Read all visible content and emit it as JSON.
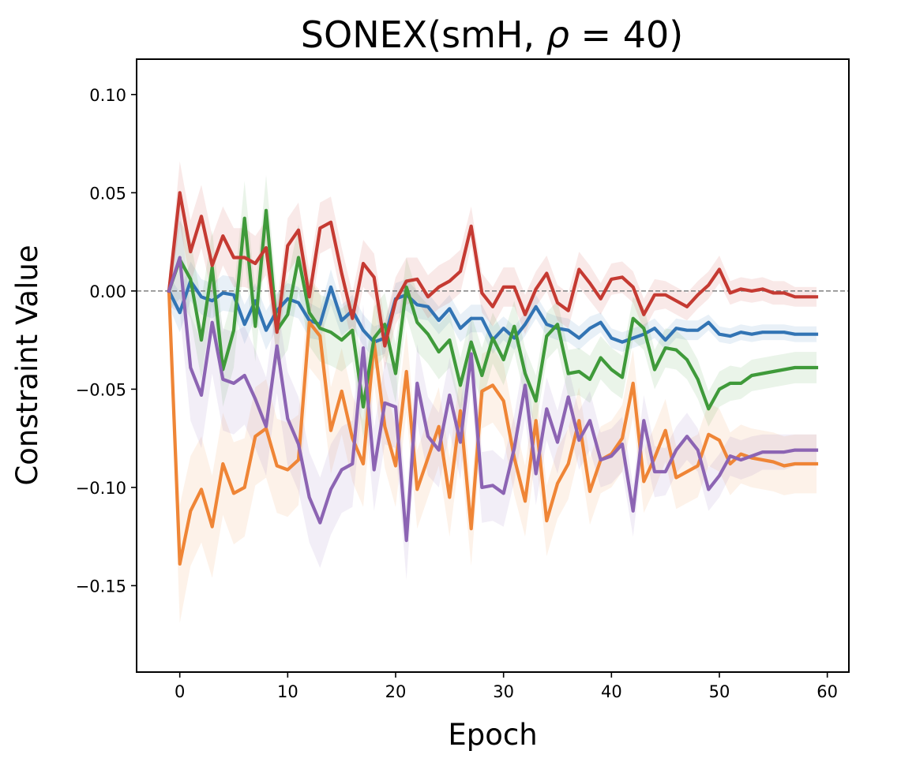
{
  "chart_data": {
    "type": "line",
    "title": "SONEX(smH, ρ =  40)",
    "title_parts": {
      "prefix": "SONEX(smH, ",
      "symbol": "ρ",
      "suffix": " =  40)"
    },
    "xlabel": "Epoch",
    "ylabel": "Constraint Value",
    "xlim": [
      -4,
      62
    ],
    "ylim": [
      -0.194,
      0.118
    ],
    "xticks": [
      0,
      10,
      20,
      30,
      40,
      50,
      60
    ],
    "xtick_labels": [
      "0",
      "10",
      "20",
      "30",
      "40",
      "50",
      "60"
    ],
    "yticks": [
      0.1,
      0.05,
      0.0,
      -0.05,
      -0.1,
      -0.15
    ],
    "ytick_labels": [
      "0.10",
      "0.05",
      "0.00",
      "−0.05",
      "−0.10",
      "−0.15"
    ],
    "reference_line": {
      "y": 0.0,
      "style": "dashed",
      "color": "#808080"
    },
    "grid": false,
    "legend": "none",
    "x": [
      -1,
      0,
      1,
      2,
      3,
      4,
      5,
      6,
      7,
      8,
      9,
      10,
      11,
      12,
      13,
      14,
      15,
      16,
      17,
      18,
      19,
      20,
      21,
      22,
      23,
      24,
      25,
      26,
      27,
      28,
      29,
      30,
      31,
      32,
      33,
      34,
      35,
      36,
      37,
      38,
      39,
      40,
      41,
      42,
      43,
      44,
      45,
      46,
      47,
      48,
      49,
      50,
      51,
      52,
      53,
      54,
      55,
      56,
      57,
      58,
      59
    ],
    "series": [
      {
        "color": "#3274b4",
        "values": [
          0.0,
          -0.011,
          0.005,
          -0.003,
          -0.005,
          -0.001,
          -0.002,
          -0.017,
          -0.005,
          -0.02,
          -0.01,
          -0.004,
          -0.006,
          -0.015,
          -0.017,
          0.002,
          -0.015,
          -0.01,
          -0.02,
          -0.026,
          -0.024,
          -0.004,
          -0.002,
          -0.007,
          -0.008,
          -0.015,
          -0.009,
          -0.019,
          -0.014,
          -0.014,
          -0.025,
          -0.019,
          -0.024,
          -0.017,
          -0.008,
          -0.017,
          -0.019,
          -0.02,
          -0.024,
          -0.019,
          -0.016,
          -0.024,
          -0.026,
          -0.024,
          -0.022,
          -0.019,
          -0.025,
          -0.019,
          -0.02,
          -0.02,
          -0.016,
          -0.022,
          -0.023,
          -0.021,
          -0.022,
          -0.021,
          -0.021,
          -0.021,
          -0.022,
          -0.022,
          -0.022
        ],
        "band": [
          0.008,
          0.01,
          0.01,
          0.009,
          0.009,
          0.009,
          0.009,
          0.01,
          0.009,
          0.01,
          0.009,
          0.008,
          0.008,
          0.009,
          0.008,
          0.009,
          0.008,
          0.008,
          0.008,
          0.008,
          0.008,
          0.008,
          0.008,
          0.007,
          0.007,
          0.007,
          0.007,
          0.007,
          0.007,
          0.007,
          0.007,
          0.006,
          0.006,
          0.006,
          0.006,
          0.006,
          0.006,
          0.006,
          0.006,
          0.006,
          0.005,
          0.005,
          0.005,
          0.005,
          0.005,
          0.005,
          0.005,
          0.005,
          0.005,
          0.005,
          0.004,
          0.004,
          0.004,
          0.004,
          0.004,
          0.004,
          0.004,
          0.004,
          0.004,
          0.004,
          0.004
        ]
      },
      {
        "color": "#ef8536",
        "values": [
          0.0,
          -0.139,
          -0.112,
          -0.101,
          -0.12,
          -0.088,
          -0.103,
          -0.1,
          -0.074,
          -0.07,
          -0.089,
          -0.091,
          -0.086,
          -0.016,
          -0.023,
          -0.071,
          -0.051,
          -0.075,
          -0.088,
          -0.026,
          -0.069,
          -0.089,
          -0.041,
          -0.101,
          -0.085,
          -0.069,
          -0.105,
          -0.061,
          -0.121,
          -0.051,
          -0.048,
          -0.056,
          -0.085,
          -0.107,
          -0.066,
          -0.117,
          -0.098,
          -0.088,
          -0.066,
          -0.102,
          -0.086,
          -0.083,
          -0.075,
          -0.047,
          -0.097,
          -0.085,
          -0.071,
          -0.095,
          -0.092,
          -0.089,
          -0.073,
          -0.076,
          -0.088,
          -0.083,
          -0.085,
          -0.086,
          -0.087,
          -0.089,
          -0.088,
          -0.088,
          -0.088
        ],
        "band": [
          0.01,
          0.03,
          0.028,
          0.027,
          0.026,
          0.026,
          0.026,
          0.025,
          0.025,
          0.025,
          0.024,
          0.024,
          0.023,
          0.023,
          0.023,
          0.022,
          0.022,
          0.022,
          0.022,
          0.021,
          0.021,
          0.021,
          0.021,
          0.02,
          0.02,
          0.02,
          0.02,
          0.02,
          0.019,
          0.019,
          0.019,
          0.019,
          0.019,
          0.018,
          0.018,
          0.018,
          0.018,
          0.018,
          0.017,
          0.017,
          0.017,
          0.017,
          0.017,
          0.017,
          0.016,
          0.016,
          0.016,
          0.016,
          0.016,
          0.016,
          0.016,
          0.016,
          0.016,
          0.015,
          0.015,
          0.015,
          0.015,
          0.015,
          0.015,
          0.015,
          0.015
        ]
      },
      {
        "color": "#3f9a3a",
        "values": [
          0.0,
          0.016,
          0.006,
          -0.025,
          0.012,
          -0.04,
          -0.02,
          0.037,
          -0.018,
          0.041,
          -0.02,
          -0.012,
          0.017,
          -0.011,
          -0.019,
          -0.021,
          -0.025,
          -0.02,
          -0.059,
          -0.024,
          -0.017,
          -0.042,
          0.002,
          -0.016,
          -0.022,
          -0.031,
          -0.025,
          -0.048,
          -0.026,
          -0.043,
          -0.024,
          -0.035,
          -0.018,
          -0.042,
          -0.056,
          -0.023,
          -0.017,
          -0.042,
          -0.041,
          -0.045,
          -0.034,
          -0.04,
          -0.044,
          -0.014,
          -0.019,
          -0.04,
          -0.029,
          -0.03,
          -0.035,
          -0.045,
          -0.06,
          -0.05,
          -0.047,
          -0.047,
          -0.043,
          -0.042,
          -0.041,
          -0.04,
          -0.039,
          -0.039,
          -0.039
        ],
        "band": [
          0.01,
          0.02,
          0.02,
          0.02,
          0.019,
          0.019,
          0.019,
          0.019,
          0.018,
          0.018,
          0.018,
          0.018,
          0.017,
          0.017,
          0.017,
          0.017,
          0.016,
          0.016,
          0.016,
          0.016,
          0.016,
          0.015,
          0.015,
          0.015,
          0.015,
          0.014,
          0.014,
          0.014,
          0.014,
          0.014,
          0.013,
          0.013,
          0.013,
          0.013,
          0.013,
          0.012,
          0.012,
          0.012,
          0.012,
          0.012,
          0.011,
          0.011,
          0.011,
          0.011,
          0.011,
          0.01,
          0.01,
          0.01,
          0.01,
          0.01,
          0.009,
          0.009,
          0.009,
          0.008,
          0.008,
          0.008,
          0.008,
          0.008,
          0.008,
          0.008,
          0.008
        ]
      },
      {
        "color": "#c53a32",
        "values": [
          0.0,
          0.05,
          0.02,
          0.038,
          0.013,
          0.028,
          0.017,
          0.017,
          0.014,
          0.022,
          -0.021,
          0.023,
          0.031,
          -0.003,
          0.032,
          0.035,
          0.009,
          -0.014,
          0.014,
          0.007,
          -0.028,
          -0.005,
          0.005,
          0.006,
          -0.003,
          0.002,
          0.005,
          0.01,
          0.033,
          -0.001,
          -0.008,
          0.002,
          0.002,
          -0.012,
          0.001,
          0.009,
          -0.006,
          -0.01,
          0.011,
          0.004,
          -0.004,
          0.006,
          0.007,
          0.002,
          -0.012,
          -0.002,
          -0.002,
          -0.005,
          -0.008,
          -0.002,
          0.003,
          0.011,
          -0.001,
          0.001,
          0.0,
          0.001,
          -0.001,
          -0.001,
          -0.003,
          -0.003,
          -0.003
        ],
        "band": [
          0.008,
          0.016,
          0.016,
          0.016,
          0.015,
          0.015,
          0.015,
          0.015,
          0.014,
          0.014,
          0.014,
          0.014,
          0.014,
          0.013,
          0.013,
          0.013,
          0.013,
          0.013,
          0.012,
          0.012,
          0.012,
          0.012,
          0.012,
          0.011,
          0.011,
          0.011,
          0.011,
          0.011,
          0.01,
          0.01,
          0.01,
          0.01,
          0.01,
          0.01,
          0.009,
          0.009,
          0.009,
          0.009,
          0.009,
          0.009,
          0.008,
          0.008,
          0.008,
          0.008,
          0.008,
          0.008,
          0.007,
          0.007,
          0.007,
          0.007,
          0.007,
          0.007,
          0.006,
          0.006,
          0.006,
          0.006,
          0.006,
          0.006,
          0.005,
          0.005,
          0.005
        ]
      },
      {
        "color": "#8c64b3",
        "values": [
          0.0,
          0.017,
          -0.039,
          -0.053,
          -0.016,
          -0.045,
          -0.047,
          -0.043,
          -0.055,
          -0.069,
          -0.028,
          -0.065,
          -0.078,
          -0.105,
          -0.118,
          -0.101,
          -0.091,
          -0.088,
          -0.029,
          -0.091,
          -0.057,
          -0.059,
          -0.127,
          -0.047,
          -0.074,
          -0.081,
          -0.053,
          -0.077,
          -0.032,
          -0.1,
          -0.099,
          -0.103,
          -0.08,
          -0.048,
          -0.093,
          -0.06,
          -0.077,
          -0.054,
          -0.076,
          -0.066,
          -0.086,
          -0.084,
          -0.078,
          -0.112,
          -0.066,
          -0.092,
          -0.092,
          -0.081,
          -0.074,
          -0.081,
          -0.101,
          -0.094,
          -0.084,
          -0.086,
          -0.084,
          -0.082,
          -0.082,
          -0.082,
          -0.081,
          -0.081,
          -0.081
        ],
        "band": [
          0.008,
          0.028,
          0.027,
          0.027,
          0.026,
          0.026,
          0.026,
          0.025,
          0.025,
          0.025,
          0.024,
          0.024,
          0.024,
          0.023,
          0.023,
          0.023,
          0.022,
          0.022,
          0.022,
          0.021,
          0.021,
          0.021,
          0.02,
          0.02,
          0.02,
          0.019,
          0.019,
          0.019,
          0.018,
          0.018,
          0.018,
          0.017,
          0.017,
          0.017,
          0.016,
          0.016,
          0.016,
          0.015,
          0.015,
          0.015,
          0.014,
          0.014,
          0.014,
          0.013,
          0.013,
          0.013,
          0.012,
          0.012,
          0.012,
          0.011,
          0.011,
          0.011,
          0.01,
          0.01,
          0.01,
          0.009,
          0.009,
          0.009,
          0.008,
          0.008,
          0.008
        ]
      }
    ]
  }
}
